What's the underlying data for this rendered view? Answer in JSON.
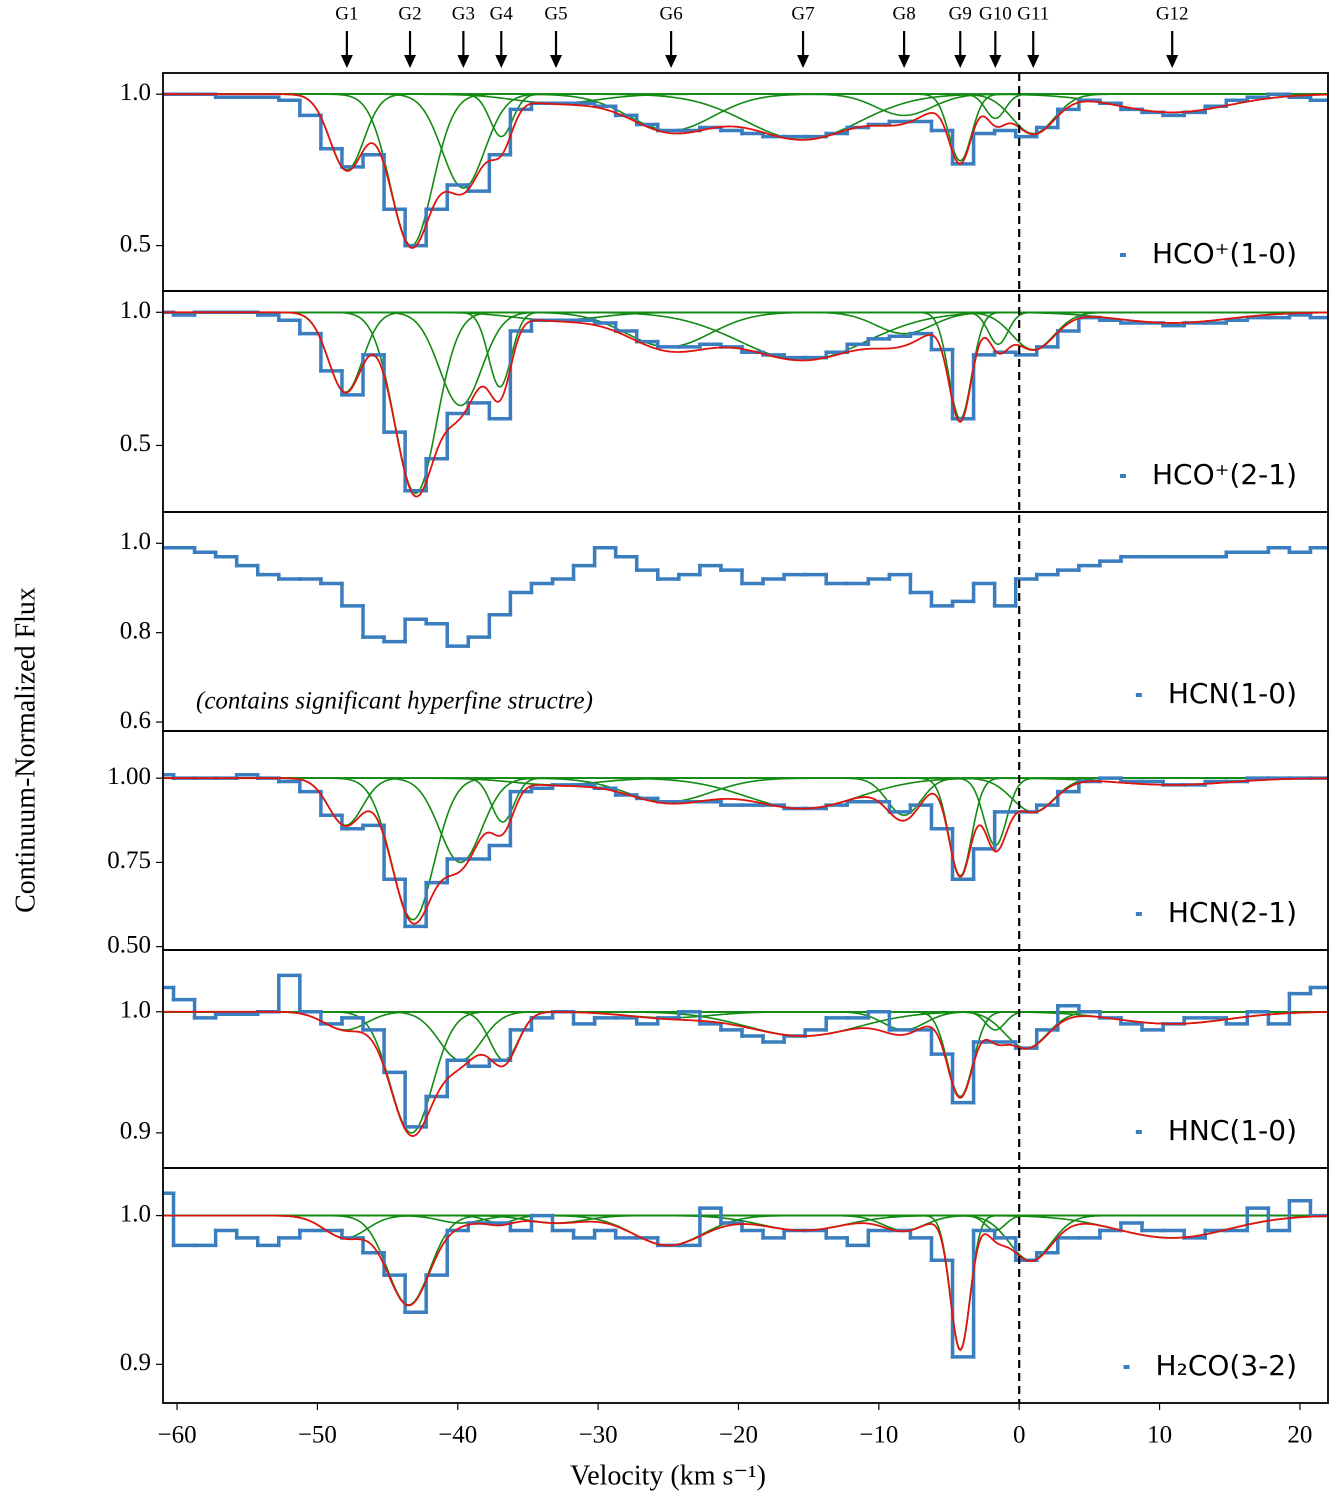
{
  "xlabel": "Velocity (km s⁻¹)",
  "ylabel": "Continuum-Normalized Flux",
  "xlim": [
    -61,
    22
  ],
  "xticks": [
    {
      "value": -60,
      "label": "−60"
    },
    {
      "value": -50,
      "label": "−50"
    },
    {
      "value": -40,
      "label": "−40"
    },
    {
      "value": -30,
      "label": "−30"
    },
    {
      "value": -20,
      "label": "−20"
    },
    {
      "value": -10,
      "label": "−10"
    },
    0,
    10,
    20
  ],
  "vline": 0,
  "markers": [
    {
      "label": "G1",
      "x": -47.9
    },
    {
      "label": "G2",
      "x": -43.4
    },
    {
      "label": "G3",
      "x": -39.6
    },
    {
      "label": "G4",
      "x": -36.9
    },
    {
      "label": "G5",
      "x": -33.0
    },
    {
      "label": "G6",
      "x": -24.8
    },
    {
      "label": "G7",
      "x": -15.4
    },
    {
      "label": "G8",
      "x": -8.2
    },
    {
      "label": "G9",
      "x": -4.2
    },
    {
      "label": "G10",
      "x": -1.7
    },
    {
      "label": "G11",
      "x": 1.0
    },
    {
      "label": "G12",
      "x": 10.9
    }
  ],
  "x": [
    -61,
    -59.5,
    -58,
    -56.5,
    -55,
    -53.5,
    -52,
    -50.5,
    -49,
    -47.5,
    -46,
    -44.5,
    -43,
    -41.5,
    -40,
    -38.5,
    -37,
    -35.5,
    -34,
    -32.5,
    -31,
    -29.5,
    -28,
    -26.5,
    -25,
    -23.5,
    -22,
    -20.5,
    -19,
    -17.5,
    -16,
    -14.5,
    -13,
    -11.5,
    -10,
    -8.5,
    -7,
    -5.5,
    -4,
    -2.5,
    -1,
    0.5,
    2,
    3.5,
    5,
    6.5,
    8,
    9.5,
    11,
    12.5,
    14,
    15.5,
    17,
    18.5,
    20,
    21.5
  ],
  "fit_color": "#e0140f",
  "component_color": "#138a13",
  "chart_data": [
    {
      "type": "step",
      "ylim": [
        0.35,
        1.07
      ],
      "yticks": [
        {
          "value": 0.5,
          "label": "0.5"
        },
        {
          "value": 1,
          "label": "1.0"
        }
      ],
      "series": [
        {
          "name": "HCO⁺(1-0)",
          "color": "#3a7ebf",
          "values": [
            1.0,
            1.0,
            1.0,
            0.99,
            0.99,
            0.99,
            0.98,
            0.93,
            0.82,
            0.76,
            0.8,
            0.62,
            0.5,
            0.62,
            0.7,
            0.68,
            0.8,
            0.95,
            0.97,
            0.97,
            0.97,
            0.96,
            0.93,
            0.9,
            0.88,
            0.88,
            0.89,
            0.88,
            0.87,
            0.86,
            0.86,
            0.86,
            0.87,
            0.89,
            0.9,
            0.91,
            0.91,
            0.88,
            0.77,
            0.87,
            0.88,
            0.86,
            0.89,
            0.95,
            0.98,
            0.97,
            0.95,
            0.94,
            0.93,
            0.94,
            0.96,
            0.98,
            0.99,
            1.0,
            0.99,
            0.98
          ]
        }
      ],
      "components": [
        {
          "center": -47.9,
          "min": 0.75,
          "sigma": 1.2
        },
        {
          "center": -43.3,
          "min": 0.5,
          "sigma": 1.5
        },
        {
          "center": -39.6,
          "min": 0.69,
          "sigma": 1.5
        },
        {
          "center": -36.9,
          "min": 0.86,
          "sigma": 0.8
        },
        {
          "center": -33,
          "min": 0.97,
          "sigma": 3
        },
        {
          "center": -24.8,
          "min": 0.88,
          "sigma": 3
        },
        {
          "center": -15.4,
          "min": 0.85,
          "sigma": 4
        },
        {
          "center": -8.2,
          "min": 0.93,
          "sigma": 2
        },
        {
          "center": -4.2,
          "min": 0.78,
          "sigma": 0.8
        },
        {
          "center": -1.7,
          "min": 0.92,
          "sigma": 0.7
        },
        {
          "center": 1.0,
          "min": 0.87,
          "sigma": 1.5
        },
        {
          "center": 10.9,
          "min": 0.94,
          "sigma": 4
        }
      ]
    },
    {
      "type": "step",
      "ylim": [
        0.25,
        1.08
      ],
      "yticks": [
        {
          "value": 0.5,
          "label": "0.5"
        },
        {
          "value": 1,
          "label": "1.0"
        }
      ],
      "series": [
        {
          "name": "HCO⁺(2-1)",
          "color": "#3a7ebf",
          "values": [
            1.0,
            0.99,
            1.0,
            1.0,
            1.0,
            0.99,
            0.97,
            0.92,
            0.78,
            0.69,
            0.84,
            0.55,
            0.33,
            0.45,
            0.62,
            0.66,
            0.6,
            0.93,
            0.97,
            0.97,
            0.97,
            0.96,
            0.93,
            0.89,
            0.87,
            0.87,
            0.88,
            0.87,
            0.85,
            0.84,
            0.83,
            0.83,
            0.85,
            0.88,
            0.9,
            0.91,
            0.92,
            0.86,
            0.6,
            0.84,
            0.85,
            0.84,
            0.87,
            0.93,
            0.98,
            0.97,
            0.96,
            0.96,
            0.95,
            0.96,
            0.96,
            0.97,
            0.98,
            0.98,
            0.99,
            0.98
          ]
        }
      ],
      "components": [
        {
          "center": -48,
          "min": 0.7,
          "sigma": 1.2
        },
        {
          "center": -43,
          "min": 0.32,
          "sigma": 1.5
        },
        {
          "center": -39.8,
          "min": 0.65,
          "sigma": 1.5
        },
        {
          "center": -37,
          "min": 0.72,
          "sigma": 0.8
        },
        {
          "center": -33,
          "min": 0.97,
          "sigma": 3
        },
        {
          "center": -25,
          "min": 0.87,
          "sigma": 3
        },
        {
          "center": -15.4,
          "min": 0.82,
          "sigma": 4.5
        },
        {
          "center": -8.2,
          "min": 0.92,
          "sigma": 2
        },
        {
          "center": -4.2,
          "min": 0.6,
          "sigma": 0.8
        },
        {
          "center": -1.5,
          "min": 0.88,
          "sigma": 0.7
        },
        {
          "center": 1.0,
          "min": 0.86,
          "sigma": 1.5
        },
        {
          "center": 10.9,
          "min": 0.96,
          "sigma": 4
        }
      ]
    },
    {
      "type": "step",
      "ylim": [
        0.58,
        1.07
      ],
      "yticks": [
        0.6,
        0.8,
        {
          "value": 1,
          "label": "1.0"
        }
      ],
      "annotation": "(contains significant hyperfine structre)",
      "series": [
        {
          "name": "HCN(1-0)",
          "color": "#3a7ebf",
          "values": [
            0.99,
            0.99,
            0.98,
            0.97,
            0.95,
            0.93,
            0.92,
            0.92,
            0.91,
            0.86,
            0.79,
            0.78,
            0.83,
            0.82,
            0.77,
            0.79,
            0.84,
            0.89,
            0.91,
            0.92,
            0.95,
            0.99,
            0.97,
            0.94,
            0.92,
            0.93,
            0.95,
            0.94,
            0.91,
            0.92,
            0.93,
            0.93,
            0.91,
            0.91,
            0.92,
            0.93,
            0.89,
            0.86,
            0.87,
            0.91,
            0.86,
            0.92,
            0.93,
            0.94,
            0.95,
            0.96,
            0.97,
            0.97,
            0.97,
            0.97,
            0.97,
            0.98,
            0.98,
            0.99,
            0.98,
            0.99
          ]
        }
      ],
      "components": []
    },
    {
      "type": "step",
      "ylim": [
        0.49,
        1.14
      ],
      "yticks": [
        {
          "value": 0.5,
          "label": "0.50"
        },
        0.75,
        {
          "value": 1,
          "label": "1.00"
        }
      ],
      "series": [
        {
          "name": "HCN(2-1)",
          "color": "#3a7ebf",
          "values": [
            1.01,
            1.0,
            1.0,
            1.0,
            1.01,
            1.0,
            0.99,
            0.96,
            0.89,
            0.85,
            0.86,
            0.7,
            0.56,
            0.69,
            0.76,
            0.76,
            0.8,
            0.96,
            0.97,
            0.98,
            0.98,
            0.97,
            0.95,
            0.94,
            0.93,
            0.93,
            0.93,
            0.92,
            0.92,
            0.92,
            0.91,
            0.91,
            0.92,
            0.93,
            0.93,
            0.9,
            0.92,
            0.85,
            0.7,
            0.79,
            0.9,
            0.9,
            0.92,
            0.96,
            0.99,
            1.0,
            0.99,
            0.99,
            0.98,
            0.98,
            0.99,
            0.99,
            1.0,
            1.0,
            1.0,
            1.0
          ]
        }
      ],
      "components": [
        {
          "center": -48,
          "min": 0.86,
          "sigma": 1.2
        },
        {
          "center": -43.2,
          "min": 0.58,
          "sigma": 1.5
        },
        {
          "center": -39.8,
          "min": 0.75,
          "sigma": 1.5
        },
        {
          "center": -36.8,
          "min": 0.87,
          "sigma": 0.8
        },
        {
          "center": -33,
          "min": 0.98,
          "sigma": 3
        },
        {
          "center": -25,
          "min": 0.93,
          "sigma": 3
        },
        {
          "center": -15.4,
          "min": 0.91,
          "sigma": 4
        },
        {
          "center": -8.2,
          "min": 0.89,
          "sigma": 1.2
        },
        {
          "center": -4.2,
          "min": 0.71,
          "sigma": 0.8
        },
        {
          "center": -1.7,
          "min": 0.8,
          "sigma": 0.8
        },
        {
          "center": 1.0,
          "min": 0.9,
          "sigma": 1.5
        },
        {
          "center": 10.9,
          "min": 0.98,
          "sigma": 4
        }
      ]
    },
    {
      "type": "step",
      "ylim": [
        0.871,
        1.051
      ],
      "yticks": [
        0.9,
        {
          "value": 1,
          "label": "1.0"
        }
      ],
      "series": [
        {
          "name": "HNC(1-0)",
          "color": "#3a7ebf",
          "values": [
            1.02,
            1.01,
            0.995,
            0.998,
            0.998,
            1.0,
            1.03,
            1.0,
            0.99,
            0.995,
            0.985,
            0.95,
            0.905,
            0.93,
            0.96,
            0.955,
            0.96,
            0.985,
            0.995,
            1.0,
            0.99,
            0.995,
            0.995,
            0.99,
            0.995,
            1.0,
            0.99,
            0.985,
            0.98,
            0.975,
            0.98,
            0.985,
            0.995,
            0.995,
            1.0,
            0.985,
            0.985,
            0.965,
            0.925,
            0.975,
            0.975,
            0.97,
            0.985,
            1.005,
            1.0,
            0.995,
            0.99,
            0.985,
            0.99,
            0.995,
            0.995,
            0.99,
            1.0,
            0.99,
            1.015,
            1.02
          ]
        }
      ],
      "components": [
        {
          "center": -48,
          "min": 0.985,
          "sigma": 1.5
        },
        {
          "center": -43.3,
          "min": 0.9,
          "sigma": 1.5
        },
        {
          "center": -39.8,
          "min": 0.96,
          "sigma": 1.5
        },
        {
          "center": -36.7,
          "min": 0.96,
          "sigma": 1
        },
        {
          "center": -25,
          "min": 0.995,
          "sigma": 3
        },
        {
          "center": -15.4,
          "min": 0.98,
          "sigma": 4
        },
        {
          "center": -8.2,
          "min": 0.985,
          "sigma": 1.5
        },
        {
          "center": -4.2,
          "min": 0.93,
          "sigma": 0.9
        },
        {
          "center": -1.7,
          "min": 0.985,
          "sigma": 0.7
        },
        {
          "center": 0.5,
          "min": 0.97,
          "sigma": 1.5
        },
        {
          "center": 10.9,
          "min": 0.99,
          "sigma": 4
        }
      ]
    },
    {
      "type": "step",
      "ylim": [
        0.874,
        1.032
      ],
      "yticks": [
        0.9,
        {
          "value": 1,
          "label": "1.0"
        }
      ],
      "series": [
        {
          "name": "H₂CO(3-2)",
          "color": "#3a7ebf",
          "values": [
            1.015,
            0.98,
            0.98,
            0.99,
            0.985,
            0.98,
            0.985,
            0.99,
            0.99,
            0.985,
            0.975,
            0.96,
            0.935,
            0.96,
            0.99,
            0.995,
            0.995,
            0.99,
            1.0,
            0.99,
            0.985,
            0.99,
            0.985,
            0.985,
            0.98,
            0.98,
            1.005,
            0.995,
            0.99,
            0.985,
            0.99,
            0.99,
            0.985,
            0.98,
            0.99,
            0.99,
            0.985,
            0.97,
            0.905,
            0.99,
            0.985,
            0.97,
            0.975,
            0.985,
            0.985,
            0.99,
            0.995,
            0.99,
            0.99,
            0.985,
            0.99,
            0.99,
            1.005,
            0.99,
            1.01,
            1.0
          ]
        }
      ],
      "components": [
        {
          "center": -48,
          "min": 0.985,
          "sigma": 1.5
        },
        {
          "center": -43.5,
          "min": 0.94,
          "sigma": 1.5
        },
        {
          "center": -39.8,
          "min": 0.995,
          "sigma": 1.5
        },
        {
          "center": -37,
          "min": 0.995,
          "sigma": 1
        },
        {
          "center": -33,
          "min": 0.995,
          "sigma": 2
        },
        {
          "center": -25,
          "min": 0.98,
          "sigma": 2.5
        },
        {
          "center": -15.4,
          "min": 0.99,
          "sigma": 3
        },
        {
          "center": -8.2,
          "min": 0.99,
          "sigma": 1.5
        },
        {
          "center": -4.2,
          "min": 0.91,
          "sigma": 0.7
        },
        {
          "center": -1.7,
          "min": 0.99,
          "sigma": 0.7
        },
        {
          "center": 0.8,
          "min": 0.97,
          "sigma": 1.5
        },
        {
          "center": 10.9,
          "min": 0.985,
          "sigma": 4
        }
      ]
    }
  ]
}
